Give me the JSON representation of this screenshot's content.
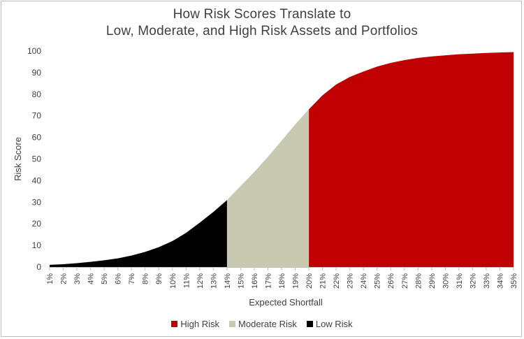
{
  "chart_data": {
    "type": "area",
    "title_lines": [
      "How Risk Scores Translate to",
      "Low, Moderate, and High Risk Assets and Portfolios"
    ],
    "xlabel": "Expected Shortfall",
    "ylabel": "Risk Score",
    "ylim": [
      0,
      100
    ],
    "y_ticks": [
      0,
      10,
      20,
      30,
      40,
      50,
      60,
      70,
      80,
      90,
      100
    ],
    "x": [
      "1%",
      "2%",
      "3%",
      "4%",
      "5%",
      "6%",
      "7%",
      "8%",
      "9%",
      "10%",
      "11%",
      "12%",
      "13%",
      "14%",
      "15%",
      "16%",
      "17%",
      "18%",
      "19%",
      "20%",
      "21%",
      "22%",
      "23%",
      "24%",
      "25%",
      "26%",
      "27%",
      "28%",
      "29%",
      "30%",
      "31%",
      "32%",
      "33%",
      "34%",
      "35%"
    ],
    "values": [
      1,
      1.3,
      1.8,
      2.4,
      3.1,
      4,
      5.3,
      7,
      9.2,
      12,
      15.8,
      20.5,
      25.5,
      31,
      37.5,
      44,
      51,
      58.5,
      66,
      73,
      79.5,
      84.5,
      88,
      90.5,
      92.8,
      94.5,
      95.8,
      96.8,
      97.5,
      98,
      98.5,
      98.8,
      99.1,
      99.3,
      99.5
    ],
    "series": [
      {
        "name": "High Risk",
        "from": "20%",
        "to": "35%",
        "color": "#c00000"
      },
      {
        "name": "Moderate Risk",
        "from": "14%",
        "to": "20%",
        "color": "#c9c8b1"
      },
      {
        "name": "Low Risk",
        "from": "1%",
        "to": "14%",
        "color": "#000000"
      }
    ],
    "legend_position": "bottom",
    "grid": false
  }
}
